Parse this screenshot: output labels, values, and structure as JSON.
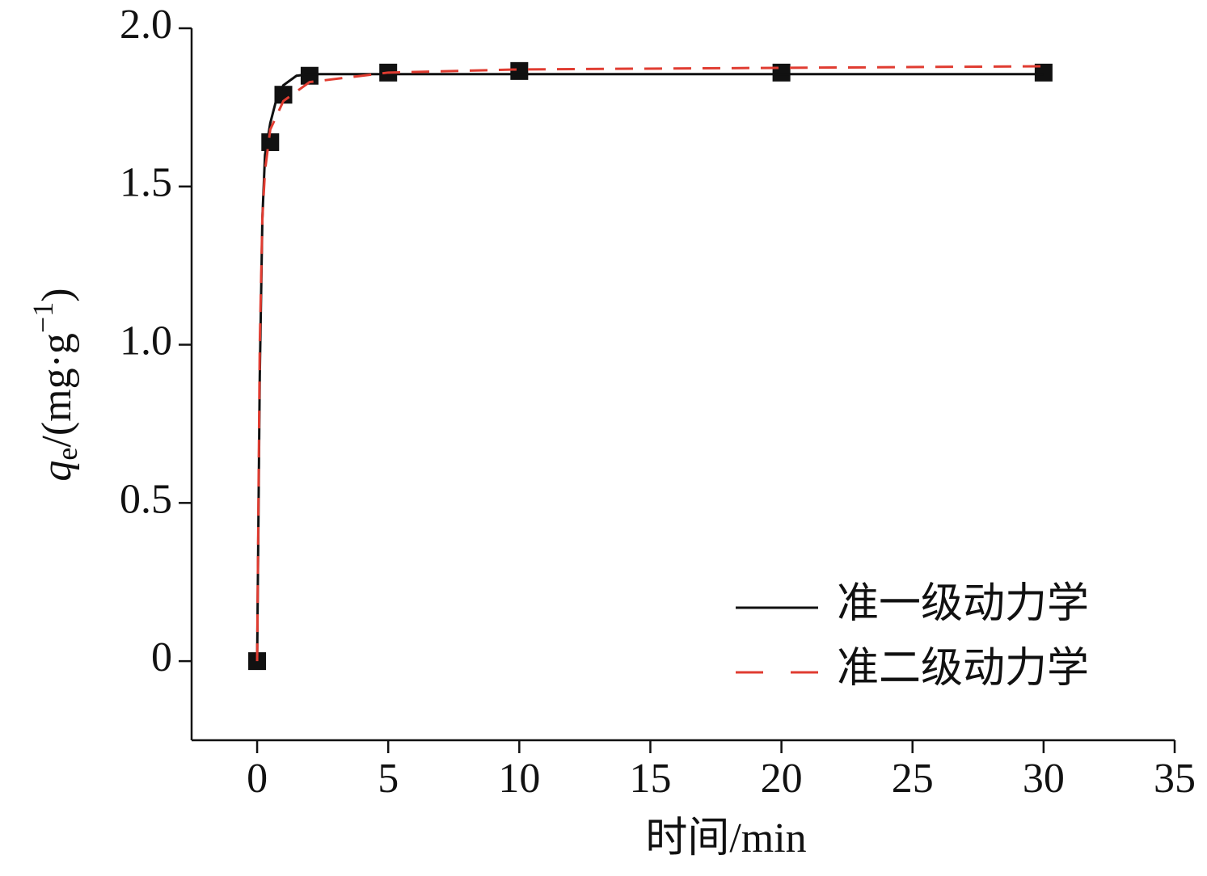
{
  "chart_data": {
    "type": "line",
    "xlabel": "时间/min",
    "ylabel": [
      "q",
      "e",
      "/(mg·g",
      "−1",
      ")"
    ],
    "xlim": [
      -2.5,
      35
    ],
    "ylim": [
      -0.25,
      2.0
    ],
    "xticks": [
      0,
      5,
      10,
      15,
      20,
      25,
      30,
      35
    ],
    "yticks": [
      0,
      0.5,
      {
        "value": 1.0,
        "label": "1.0"
      },
      1.5,
      {
        "value": 2.0,
        "label": "2.0"
      }
    ],
    "legend": "lower right",
    "series": [
      {
        "style": "markers",
        "color": "#111111",
        "x": [
          0,
          0.5,
          1,
          2,
          5,
          10,
          20,
          30
        ],
        "values": [
          0,
          1.64,
          1.79,
          1.85,
          1.86,
          1.865,
          1.86,
          1.86
        ]
      },
      {
        "name": "准一级动力学",
        "style": "solid",
        "color": "#111111",
        "x": [
          0,
          0.1,
          0.2,
          0.3,
          0.5,
          0.75,
          1,
          1.5,
          2,
          5,
          30
        ],
        "values": [
          0,
          0.9,
          1.4,
          1.6,
          1.7,
          1.78,
          1.82,
          1.85,
          1.855,
          1.855,
          1.855
        ]
      },
      {
        "name": "准二级动力学",
        "style": "dashed",
        "color": "#e03c31",
        "x": [
          0,
          0.1,
          0.2,
          0.3,
          0.5,
          1,
          2,
          5,
          10,
          20,
          30
        ],
        "values": [
          0,
          1.0,
          1.4,
          1.55,
          1.68,
          1.77,
          1.83,
          1.86,
          1.87,
          1.875,
          1.88
        ]
      }
    ]
  }
}
